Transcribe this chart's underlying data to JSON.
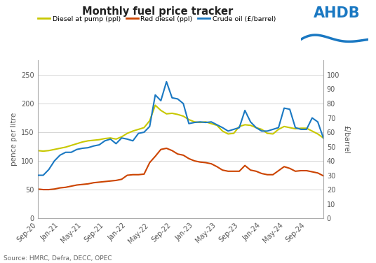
{
  "title": "Monthly fuel price tracker",
  "source": "Source: HMRC, Defra, DECC, OPEC",
  "ylabel_left": "pence per litre",
  "ylabel_right": "£/barrel",
  "ylim_left": [
    0,
    275
  ],
  "ylim_right": [
    0,
    110
  ],
  "yticks_left": [
    0,
    50,
    100,
    150,
    200,
    250
  ],
  "yticks_right": [
    0,
    10,
    20,
    30,
    40,
    50,
    60,
    70,
    80,
    90,
    100
  ],
  "xtick_labels": [
    "Sep-20",
    "Jan-21",
    "May-21",
    "Sep-21",
    "Jan-22",
    "May-22",
    "Sep-22",
    "Jan-23",
    "May-23",
    "Sep-23",
    "Jan-24",
    "May-24",
    "Sep-24"
  ],
  "legend_labels": [
    "Diesel at pump (ppl)",
    "Red diesel (ppl)",
    "Crude oil (£/barrel)"
  ],
  "line_colors": [
    "#c8c800",
    "#cc4400",
    "#1a78c2"
  ],
  "background_color": "#ffffff",
  "grid_color": "#d0d0d0",
  "ahdb_color": "#1a78c2",
  "diesel_pump": [
    118,
    117,
    118,
    120,
    122,
    124,
    127,
    130,
    133,
    135,
    136,
    137,
    139,
    140,
    138,
    142,
    148,
    152,
    155,
    158,
    170,
    197,
    188,
    182,
    183,
    181,
    178,
    172,
    168,
    167,
    168,
    165,
    162,
    152,
    147,
    148,
    160,
    163,
    162,
    158,
    155,
    148,
    147,
    155,
    160,
    158,
    156,
    157,
    157,
    152,
    147,
    140
  ],
  "red_diesel": [
    51,
    50,
    50,
    51,
    53,
    54,
    56,
    58,
    59,
    60,
    62,
    63,
    64,
    65,
    66,
    68,
    75,
    76,
    76,
    77,
    97,
    108,
    120,
    122,
    118,
    112,
    110,
    104,
    100,
    98,
    97,
    95,
    90,
    84,
    82,
    82,
    82,
    92,
    84,
    82,
    78,
    76,
    76,
    83,
    90,
    87,
    82,
    83,
    83,
    81,
    79,
    74
  ],
  "crude_oil_ppl": [
    75,
    75,
    85,
    100,
    110,
    115,
    115,
    120,
    122,
    123,
    126,
    128,
    135,
    138,
    130,
    140,
    138,
    135,
    148,
    150,
    160,
    215,
    205,
    238,
    210,
    208,
    200,
    165,
    167,
    168,
    167,
    168,
    163,
    158,
    152,
    155,
    158,
    188,
    168,
    158,
    152,
    152,
    155,
    158,
    192,
    190,
    158,
    155,
    155,
    175,
    168,
    140
  ]
}
